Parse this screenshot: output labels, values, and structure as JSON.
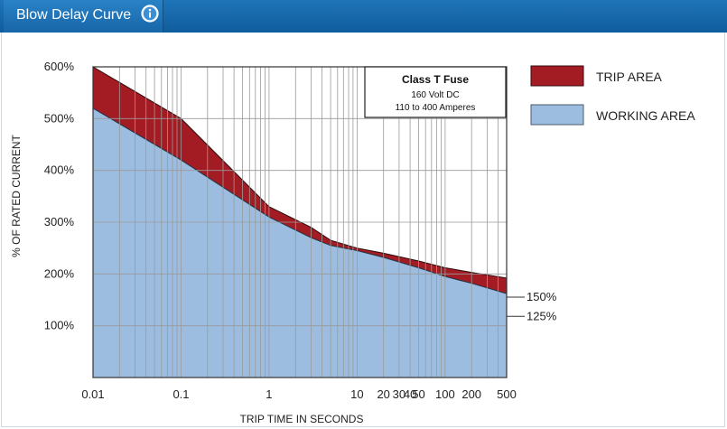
{
  "header": {
    "title": "Blow Delay Curve",
    "info_icon": "info-icon"
  },
  "colors": {
    "header_bg": "#0f5c9c",
    "trip_fill": "#a31c24",
    "working_fill": "#9dbde0",
    "grid": "#9a9a9a"
  },
  "chart_data": {
    "type": "area",
    "title": "",
    "xlabel": "TRIP TIME IN SECONDS",
    "ylabel": "% OF RATED CURRENT",
    "x_scale": "log",
    "xlim": [
      0.01,
      500
    ],
    "ylim": [
      0,
      600
    ],
    "x_ticks": [
      "0.01",
      "0.1",
      "1",
      "10",
      "20",
      "30",
      "40",
      "50",
      "100",
      "200",
      "500"
    ],
    "y_ticks": [
      "600%",
      "500%",
      "400%",
      "300%",
      "200%",
      "100%"
    ],
    "grid": true,
    "legend_position": "right",
    "note": {
      "title": "Class T Fuse",
      "lines": [
        "160 Volt DC",
        "110 to 400 Amperes"
      ]
    },
    "series": [
      {
        "name": "TRIP AREA",
        "x": [
          0.01,
          0.1,
          1,
          3,
          5,
          10,
          20,
          50,
          100,
          200,
          500
        ],
        "y": [
          600,
          500,
          330,
          290,
          265,
          250,
          240,
          225,
          212,
          203,
          192
        ]
      },
      {
        "name": "WORKING AREA",
        "x": [
          0.01,
          0.1,
          1,
          3,
          5,
          10,
          20,
          50,
          100,
          200,
          500
        ],
        "y": [
          520,
          420,
          310,
          270,
          255,
          245,
          232,
          212,
          195,
          182,
          162
        ]
      }
    ],
    "end_labels": [
      "150%",
      "125%"
    ],
    "end_label_values": [
      150,
      125
    ]
  }
}
